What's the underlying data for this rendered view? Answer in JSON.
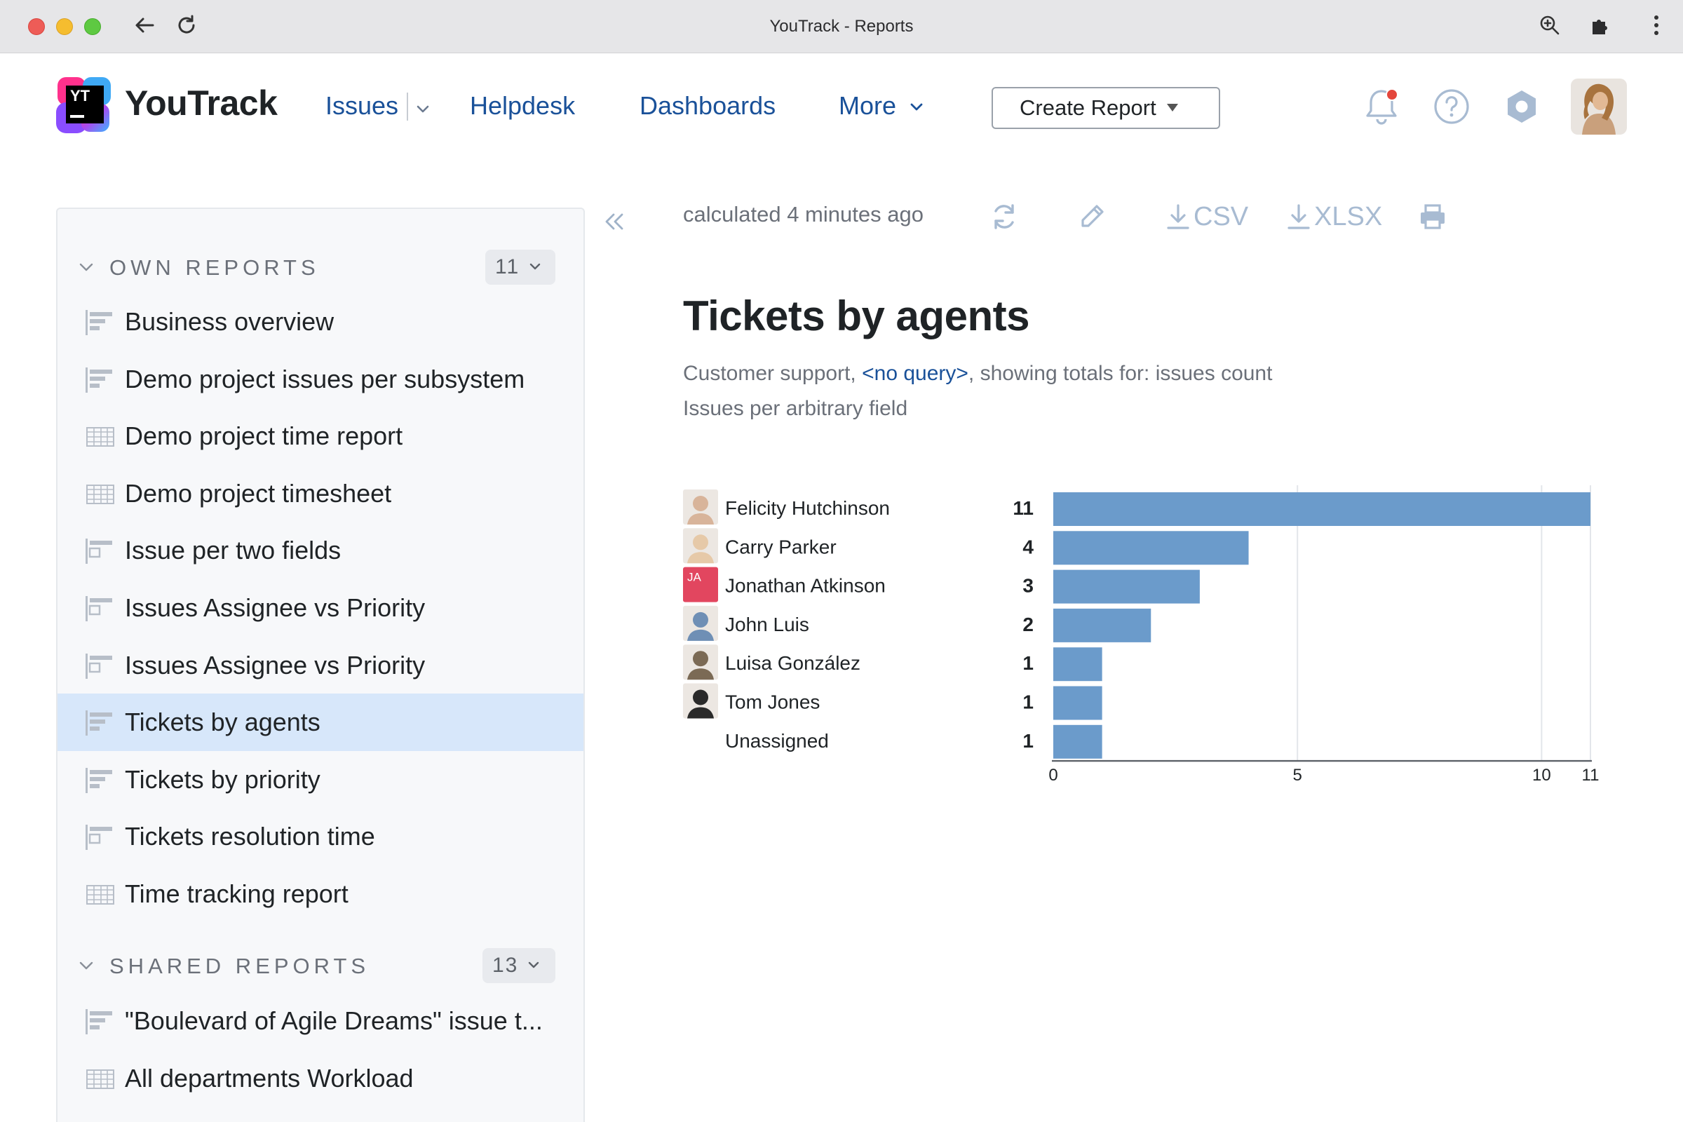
{
  "window": {
    "title": "YouTrack - Reports"
  },
  "header": {
    "logo_text": "YouTrack",
    "logo_badge": "YT",
    "nav": {
      "issues": "Issues",
      "helpdesk": "Helpdesk",
      "dashboards": "Dashboards",
      "more": "More"
    },
    "create_report": "Create Report"
  },
  "sidebar": {
    "own": {
      "title": "OWN REPORTS",
      "count": "11",
      "items": [
        {
          "label": "Business overview",
          "icon": "bar-report-icon"
        },
        {
          "label": "Demo project issues per subsystem",
          "icon": "bar-report-icon"
        },
        {
          "label": "Demo project time report",
          "icon": "table-report-icon"
        },
        {
          "label": "Demo project timesheet",
          "icon": "table-report-icon"
        },
        {
          "label": "Issue per two fields",
          "icon": "matrix-report-icon"
        },
        {
          "label": "Issues Assignee vs Priority",
          "icon": "matrix-report-icon"
        },
        {
          "label": "Issues Assignee vs Priority",
          "icon": "matrix-report-icon"
        },
        {
          "label": "Tickets by agents",
          "icon": "bar-report-icon",
          "active": true
        },
        {
          "label": "Tickets by priority",
          "icon": "bar-report-icon"
        },
        {
          "label": "Tickets resolution time",
          "icon": "matrix-report-icon"
        },
        {
          "label": "Time tracking report",
          "icon": "table-report-icon"
        }
      ]
    },
    "shared": {
      "title": "SHARED REPORTS",
      "count": "13",
      "items": [
        {
          "label": "\"Boulevard of Agile Dreams\" issue t...",
          "icon": "bar-report-icon"
        },
        {
          "label": "All departments Workload",
          "icon": "table-report-icon"
        }
      ]
    }
  },
  "report": {
    "calculated": "calculated 4 minutes ago",
    "toolbar": {
      "csv": "CSV",
      "xlsx": "XLSX"
    },
    "title": "Tickets by agents",
    "subtitle_prefix": "Customer support, ",
    "subtitle_query": "<no query>",
    "subtitle_suffix": ", showing totals for: issues count",
    "subtitle_line2": "Issues per arbitrary field"
  },
  "colors": {
    "bar": "#6b9bcb",
    "link": "#1a5199",
    "active_row": "#d7e7fa"
  },
  "chart_data": {
    "type": "bar",
    "orientation": "horizontal",
    "categories": [
      "Felicity Hutchinson",
      "Carry Parker",
      "Jonathan Atkinson",
      "John Luis",
      "Luisa González",
      "Tom Jones",
      "Unassigned"
    ],
    "avatars": [
      "photo",
      "photo",
      "JA",
      "photo",
      "photo",
      "photo",
      ""
    ],
    "values": [
      11,
      4,
      3,
      2,
      1,
      1,
      1
    ],
    "x_ticks": [
      0,
      5,
      10,
      11
    ],
    "xlim": [
      0,
      11
    ],
    "grid": true,
    "title": "",
    "xlabel": "",
    "ylabel": ""
  }
}
